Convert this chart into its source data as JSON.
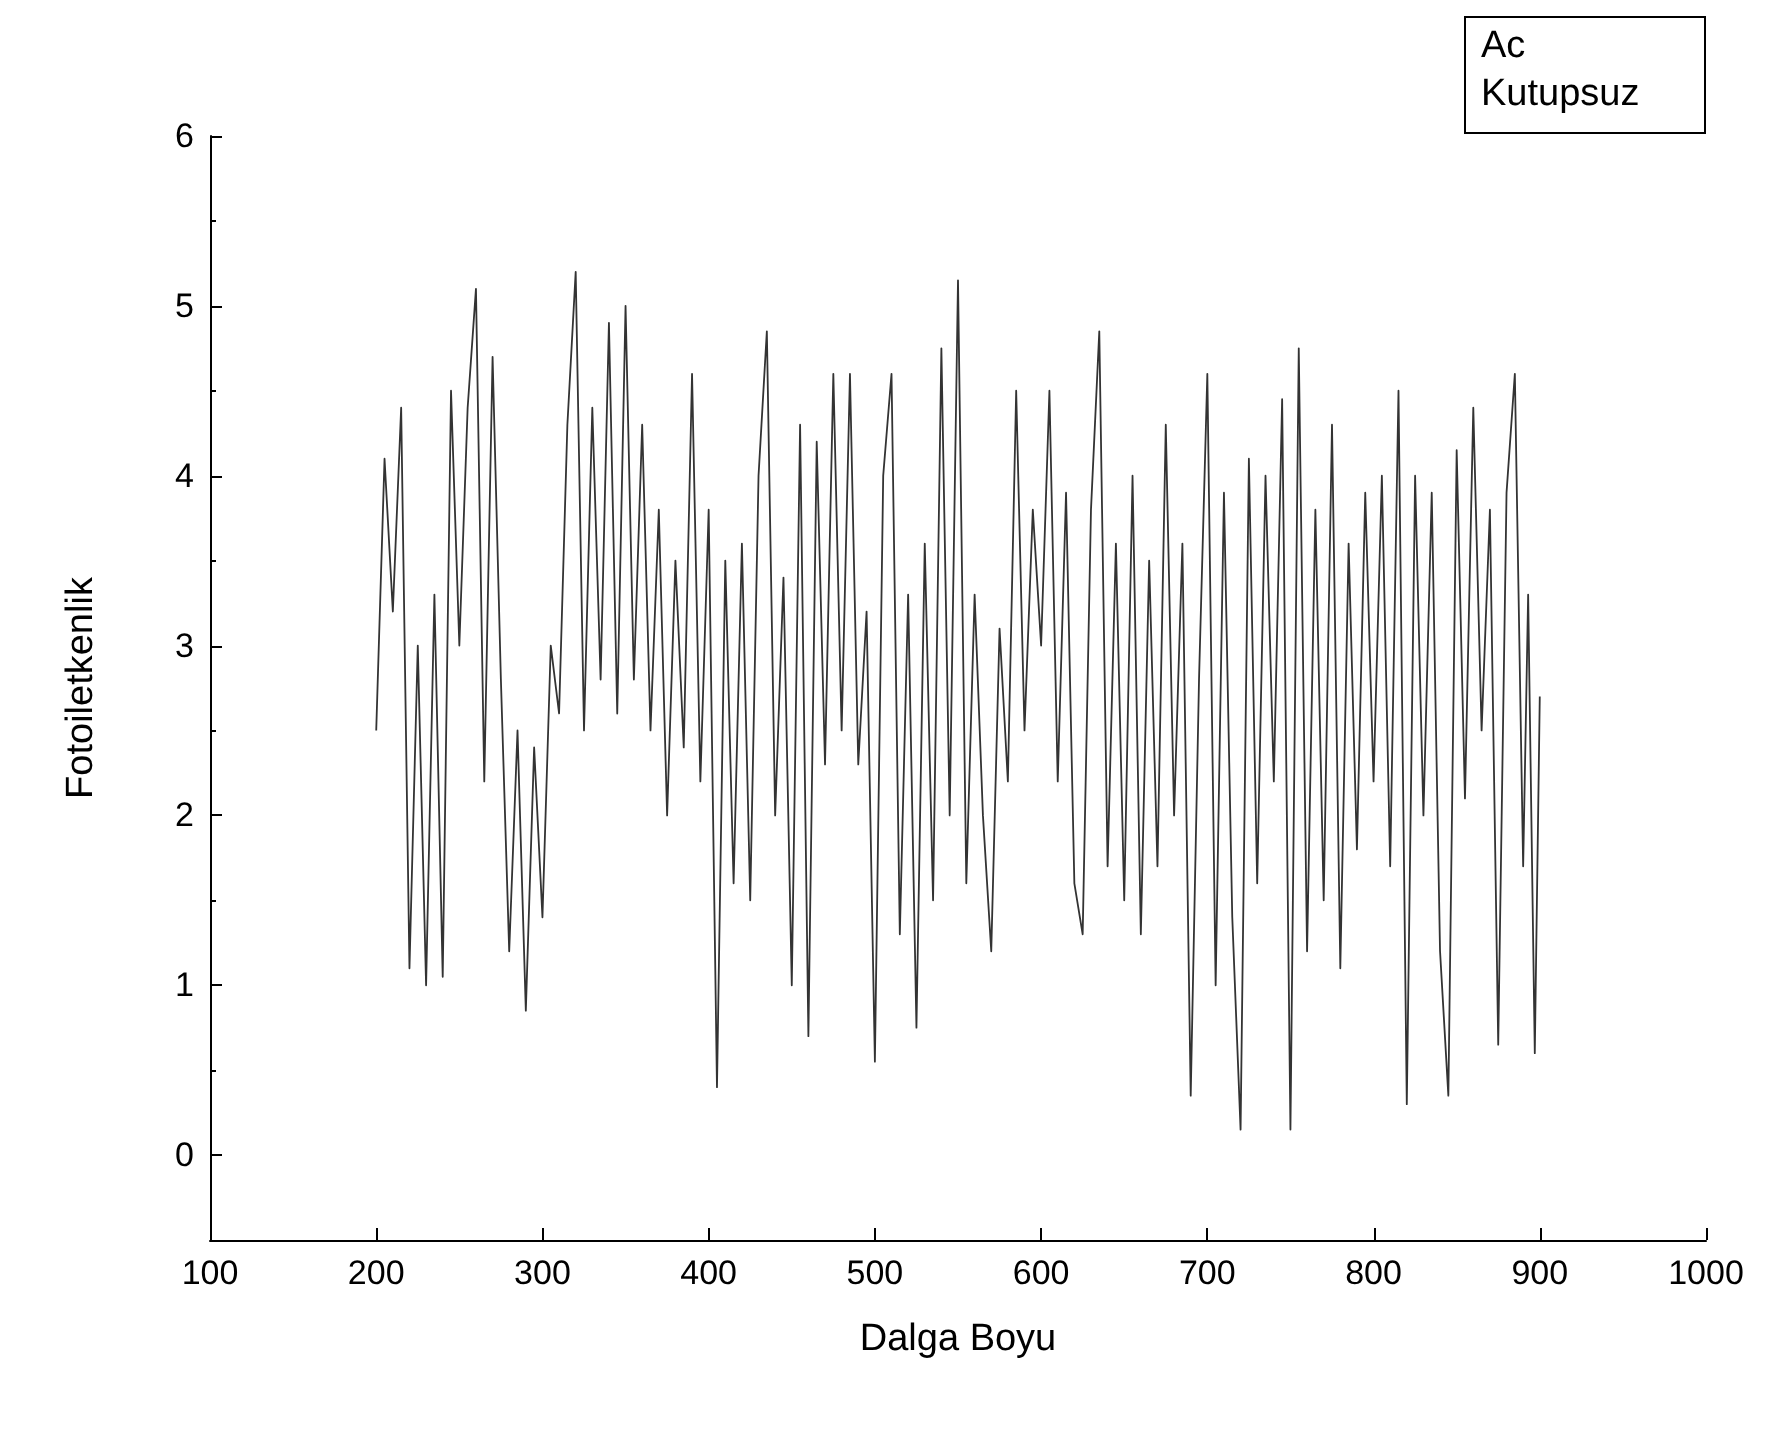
{
  "chart_data": {
    "type": "line",
    "xlabel": "Dalga Boyu",
    "ylabel": "Fotoiletkenlik",
    "annotations": [
      "Ac",
      "Kutupsuz"
    ],
    "xlim": [
      100,
      1000
    ],
    "xticks": [
      100,
      200,
      300,
      400,
      500,
      600,
      700,
      800,
      900,
      1000
    ],
    "ylim": [
      -0.5,
      6
    ],
    "yticks": [
      0,
      1,
      2,
      3,
      4,
      5,
      6
    ],
    "grid": false,
    "marker": "none",
    "line_style": "solid",
    "series": [
      {
        "color": "#333333",
        "x": [
          200,
          205,
          210,
          215,
          220,
          225,
          230,
          235,
          240,
          245,
          250,
          255,
          260,
          265,
          270,
          275,
          280,
          285,
          290,
          295,
          300,
          305,
          310,
          315,
          320,
          325,
          330,
          335,
          340,
          345,
          350,
          355,
          360,
          365,
          370,
          375,
          380,
          385,
          390,
          395,
          400,
          405,
          410,
          415,
          420,
          425,
          430,
          435,
          440,
          445,
          450,
          455,
          460,
          465,
          470,
          475,
          480,
          485,
          490,
          495,
          500,
          505,
          510,
          515,
          520,
          525,
          530,
          535,
          540,
          545,
          550,
          555,
          560,
          565,
          570,
          575,
          580,
          585,
          590,
          595,
          600,
          605,
          610,
          615,
          620,
          625,
          630,
          635,
          640,
          645,
          650,
          655,
          660,
          665,
          670,
          675,
          680,
          685,
          690,
          695,
          700,
          705,
          710,
          715,
          720,
          725,
          730,
          735,
          740,
          745,
          750,
          755,
          760,
          765,
          770,
          775,
          780,
          785,
          790,
          795,
          800,
          805,
          810,
          815,
          820,
          825,
          830,
          835,
          840,
          845,
          850,
          855,
          860,
          865,
          870,
          875,
          880,
          885,
          890,
          893,
          897,
          900
        ],
        "values": [
          2.5,
          4.1,
          3.2,
          4.4,
          1.1,
          3.0,
          1.0,
          3.3,
          1.05,
          4.5,
          3.0,
          4.4,
          5.1,
          2.2,
          4.7,
          2.8,
          1.2,
          2.5,
          0.85,
          2.4,
          1.4,
          3.0,
          2.6,
          4.3,
          5.2,
          2.5,
          4.4,
          2.8,
          4.9,
          2.6,
          5.0,
          2.8,
          4.3,
          2.5,
          3.8,
          2.0,
          3.5,
          2.4,
          4.6,
          2.2,
          3.8,
          0.4,
          3.5,
          1.6,
          3.6,
          1.5,
          4.0,
          4.85,
          2.0,
          3.4,
          1.0,
          4.3,
          0.7,
          4.2,
          2.3,
          4.6,
          2.5,
          4.6,
          2.3,
          3.2,
          0.55,
          4.0,
          4.6,
          1.3,
          3.3,
          0.75,
          3.6,
          1.5,
          4.75,
          2.0,
          5.15,
          1.6,
          3.3,
          2.0,
          1.2,
          3.1,
          2.2,
          4.5,
          2.5,
          3.8,
          3.0,
          4.5,
          2.2,
          3.9,
          1.6,
          1.3,
          3.8,
          4.85,
          1.7,
          3.6,
          1.5,
          4.0,
          1.3,
          3.5,
          1.7,
          4.3,
          2.0,
          3.6,
          0.35,
          2.8,
          4.6,
          1.0,
          3.9,
          1.4,
          0.15,
          4.1,
          1.6,
          4.0,
          2.2,
          4.45,
          0.15,
          4.75,
          1.2,
          3.8,
          1.5,
          4.3,
          1.1,
          3.6,
          1.8,
          3.9,
          2.2,
          4.0,
          1.7,
          4.5,
          0.3,
          4.0,
          2.0,
          3.9,
          1.2,
          0.35,
          4.15,
          2.1,
          4.4,
          2.5,
          3.8,
          0.65,
          3.9,
          4.6,
          1.7,
          3.3,
          0.6,
          2.7
        ]
      }
    ]
  }
}
